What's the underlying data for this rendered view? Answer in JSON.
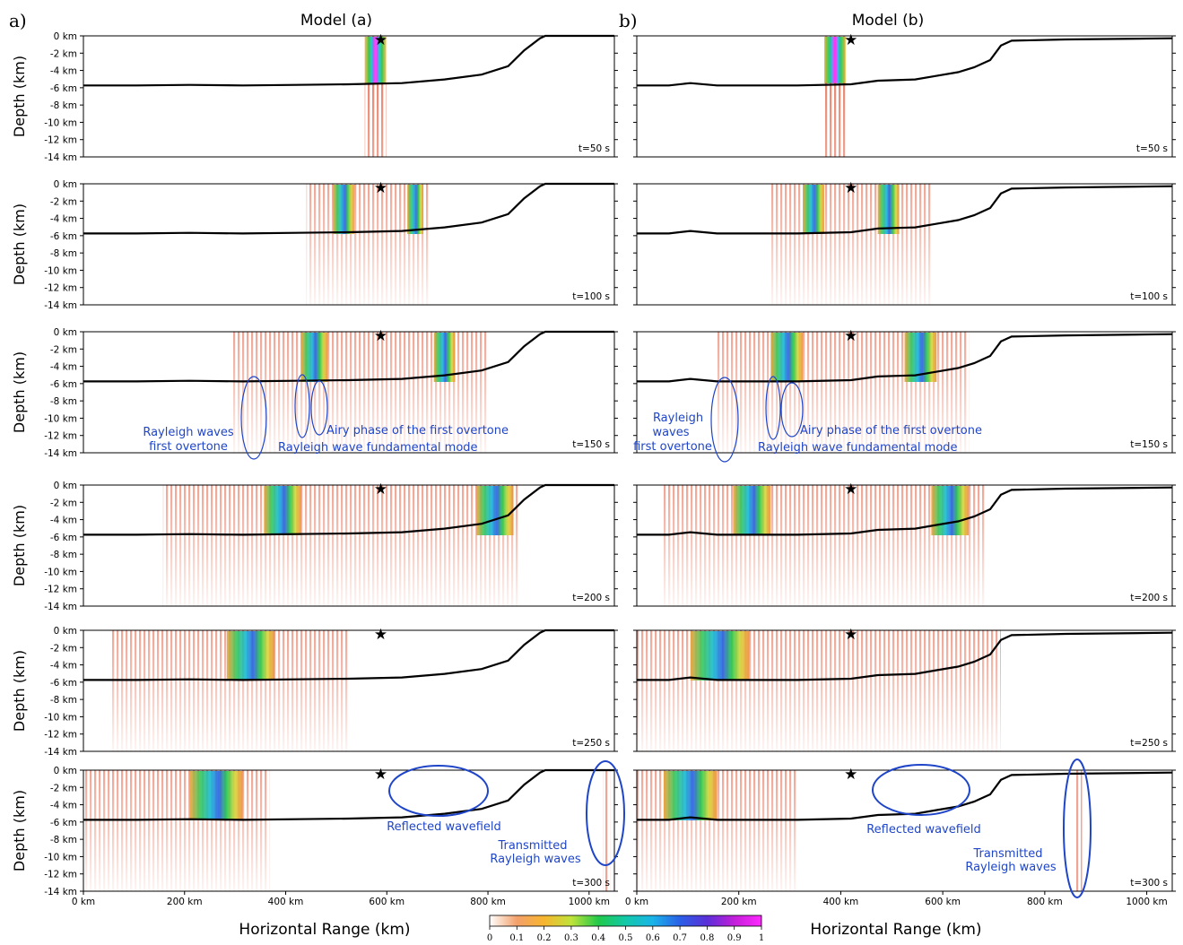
{
  "figure": {
    "columns": [
      {
        "letter": "a)",
        "title": "Model (a)"
      },
      {
        "letter": "b)",
        "title": "Model (b)"
      }
    ],
    "ylabel": "Depth (km)",
    "xlabel": "Horizontal Range (km)",
    "depth_ticks": [
      "0 km",
      "-2 km",
      "-4 km",
      "-6 km",
      "-8 km",
      "-10 km",
      "-12 km",
      "-14 km"
    ],
    "x_ticks": [
      "0 km",
      "200 km",
      "400 km",
      "600 km",
      "800 km",
      "1000 km"
    ],
    "time_labels": [
      "t=50 s",
      "t=100 s",
      "t=150 s",
      "t=200 s",
      "t=250 s",
      "t=300 s"
    ],
    "colorbar": {
      "ticks": [
        "0",
        "0.1",
        "0.2",
        "0.3",
        "0.4",
        "0.5",
        "0.6",
        "0.7",
        "0.8",
        "0.9",
        "1"
      ],
      "colors": [
        "#ffffff",
        "#f3a06a",
        "#f7b52f",
        "#bfe33a",
        "#22c84a",
        "#12c8a8",
        "#1ab4e8",
        "#2a5fe6",
        "#5a2fd8",
        "#c21fd9",
        "#ff28ff"
      ]
    },
    "annotations": {
      "a": {
        "rayleigh_first_overtone": [
          "Rayleigh waves",
          "first overtone"
        ],
        "airy_phase": "Airy phase of the first overtone",
        "fundamental_mode": "Rayleigh wave fundamental mode",
        "reflected": "Reflected wavefield",
        "transmitted": [
          "Transmitted",
          "Rayleigh waves"
        ]
      },
      "b": {
        "rayleigh_first_overtone": [
          "Rayleigh",
          "waves",
          "first overtone"
        ],
        "airy_phase": "Airy phase of the first overtone",
        "fundamental_mode": "Rayleigh wave fundamental mode",
        "reflected": "Reflected wavefield",
        "transmitted": [
          "Transmitted",
          "Rayleigh waves"
        ]
      }
    },
    "annotation_color": "#1f45c8",
    "source_marker": "star-icon"
  }
}
